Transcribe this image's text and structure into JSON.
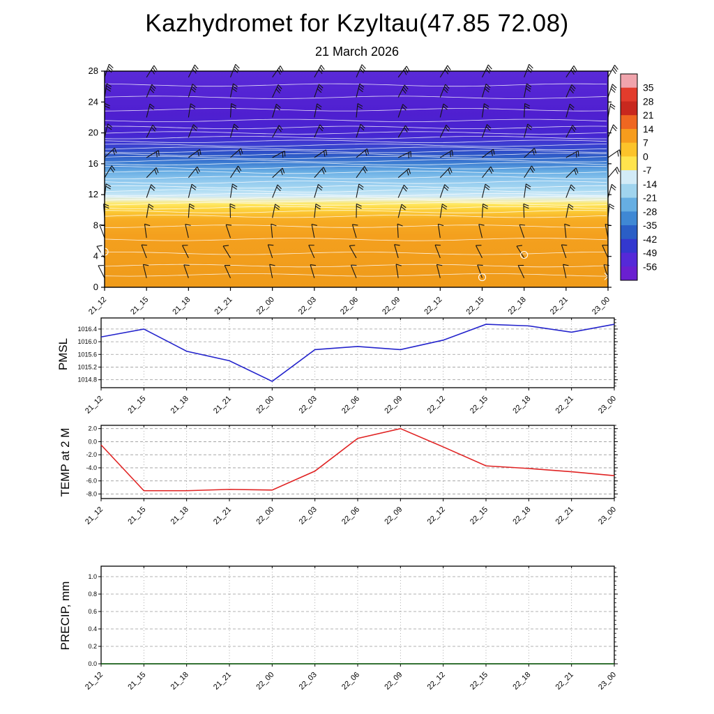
{
  "header": {
    "title": "Kazhydromet for Kzyltau(47.85 72.08)",
    "subtitle": "21 March 2026"
  },
  "time_categories": [
    "21_12",
    "21_15",
    "21_18",
    "21_21",
    "22_00",
    "22_03",
    "22_06",
    "22_09",
    "22_12",
    "22_15",
    "22_18",
    "22_21",
    "23_00"
  ],
  "chart_data": [
    {
      "type": "heatmap",
      "name": "temperature-wind-height-time-cross-section",
      "ylim": [
        0,
        28
      ],
      "yticks": [
        0,
        4,
        8,
        12,
        16,
        20,
        24,
        28
      ],
      "ytick_labels": [
        "0",
        "4",
        "8",
        "12",
        "16",
        "20",
        "24",
        "28"
      ],
      "colorbar": {
        "labels": [
          "35",
          "28",
          "21",
          "14",
          "7",
          "0",
          "-7",
          "-14",
          "-21",
          "-28",
          "-35",
          "-42",
          "-49",
          "-56"
        ],
        "colors": [
          "#f0a4ac",
          "#e23c2c",
          "#c8281e",
          "#ef6721",
          "#f69c1d",
          "#fcc32a",
          "#ffe44d",
          "#d2ebf7",
          "#a0d4ee",
          "#66aee2",
          "#3f88d4",
          "#2a5ec6",
          "#3338cf",
          "#5529d8",
          "#6a1fd0"
        ]
      },
      "band_stops": [
        {
          "f": 0.0,
          "c": "#5a2ad8"
        },
        {
          "f": 0.2,
          "c": "#4f1fd0"
        },
        {
          "f": 0.3,
          "c": "#4627d2"
        },
        {
          "f": 0.345,
          "c": "#3a41d0"
        },
        {
          "f": 0.385,
          "c": "#2c55c6"
        },
        {
          "f": 0.425,
          "c": "#3d7ed2"
        },
        {
          "f": 0.465,
          "c": "#69aee4"
        },
        {
          "f": 0.505,
          "c": "#8fc8ee"
        },
        {
          "f": 0.55,
          "c": "#abdaf2"
        },
        {
          "f": 0.578,
          "c": "#cfeaf8"
        },
        {
          "f": 0.598,
          "c": "#efeec0"
        },
        {
          "f": 0.615,
          "c": "#ffe863"
        },
        {
          "f": 0.64,
          "c": "#fdd23b"
        },
        {
          "f": 0.685,
          "c": "#f7ad24"
        },
        {
          "f": 0.76,
          "c": "#f4a01e"
        },
        {
          "f": 1.0,
          "c": "#ef9b1a"
        }
      ],
      "contour_heights": [
        1.6,
        2.8,
        4.4,
        6.2,
        7.9,
        9.2,
        9.8,
        10.3,
        10.8,
        11.2,
        11.6,
        12.0,
        12.5,
        13.0,
        13.6,
        14.2,
        14.9,
        15.5,
        16.0,
        16.4,
        16.8,
        17.2,
        17.6,
        18.0,
        18.4,
        18.9,
        19.4,
        20.0,
        20.7,
        21.6,
        23.0,
        24.6,
        26.2
      ],
      "wind_rows": [
        {
          "h": 27.2,
          "angle": 28,
          "ticks": 3
        },
        {
          "h": 24.6,
          "angle": 18,
          "ticks": 3
        },
        {
          "h": 22.0,
          "angle": 10,
          "ticks": 2
        },
        {
          "h": 19.4,
          "angle": 22,
          "ticks": 2
        },
        {
          "h": 16.8,
          "angle": 55,
          "ticks": 2
        },
        {
          "h": 14.2,
          "angle": 40,
          "ticks": 2
        },
        {
          "h": 11.6,
          "angle": 15,
          "ticks": 2
        },
        {
          "h": 9.0,
          "angle": 5,
          "ticks": 2
        },
        {
          "h": 6.4,
          "angle": -12,
          "ticks": 1
        },
        {
          "h": 3.8,
          "angle": -25,
          "ticks": 1
        },
        {
          "h": 1.2,
          "angle": -18,
          "ticks": 1
        }
      ],
      "markers": [
        {
          "col": 0,
          "h": 4.6,
          "kind": "circle"
        },
        {
          "col": 9,
          "h": 1.3,
          "kind": "circle"
        },
        {
          "col": 10,
          "h": 4.2,
          "kind": "circle"
        },
        {
          "col": 12,
          "h": 1.4,
          "kind": "x"
        }
      ]
    },
    {
      "type": "line",
      "name": "pmsl",
      "title": "PMSL",
      "color": "#2323cc",
      "values": [
        1016.15,
        1016.4,
        1015.7,
        1015.4,
        1014.75,
        1015.75,
        1015.85,
        1015.75,
        1016.05,
        1016.55,
        1016.5,
        1016.3,
        1016.55
      ],
      "yticks": [
        1014.8,
        1015.2,
        1015.6,
        1016.0,
        1016.4
      ],
      "ytick_labels": [
        "1014.8",
        "1015.2",
        "1015.6",
        "1016.0",
        "1016.4"
      ],
      "ylim": [
        1014.55,
        1016.75
      ],
      "minor_step": 0.1
    },
    {
      "type": "line",
      "name": "temp-at-2m",
      "title": "TEMP at 2 M",
      "color": "#e02222",
      "values": [
        -0.5,
        -7.5,
        -7.5,
        -7.3,
        -7.4,
        -4.5,
        0.5,
        2.0,
        -0.8,
        -3.7,
        -4.1,
        -4.6,
        -5.2
      ],
      "yticks": [
        -8,
        -6,
        -4,
        -2,
        0,
        2
      ],
      "ytick_labels": [
        "-8.0",
        "-6.0",
        "-4.0",
        "-2.0",
        "0.0",
        "2.0"
      ],
      "ylim": [
        -8.7,
        2.5
      ],
      "minor_step": 0.5
    },
    {
      "type": "line",
      "name": "precip",
      "title": "PRECIP, mm",
      "color": "#0a5c0a",
      "values": [
        0,
        0,
        0,
        0,
        0,
        0,
        0,
        0,
        0,
        0,
        0,
        0,
        0
      ],
      "yticks": [
        0,
        0.2,
        0.4,
        0.6,
        0.8,
        1.0
      ],
      "ytick_labels": [
        "0.0",
        "0.2",
        "0.4",
        "0.6",
        "0.8",
        "1.0"
      ],
      "ylim": [
        0,
        1.12
      ],
      "minor_step": 0.05
    }
  ]
}
